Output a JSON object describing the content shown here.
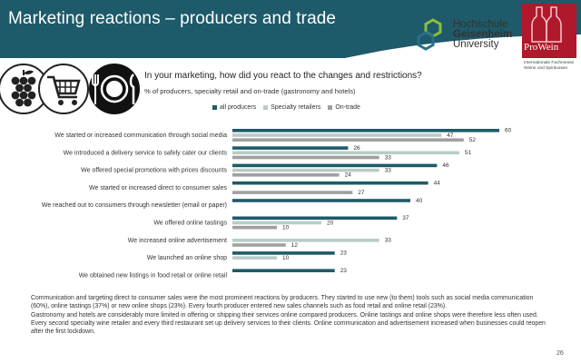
{
  "header": {
    "title": "Marketing reactions – producers and trade",
    "band_color": "#1e5a6a",
    "university_lines": [
      "Hochschule",
      "Geisenheim",
      "University"
    ],
    "partner_logo": "ProWein",
    "partner_sub_lines": [
      "Internationale Fachmesse",
      "Weine und Spirituosen"
    ]
  },
  "icons": [
    "grapes-icon",
    "shopping-cart-icon",
    "plate-cutlery-icon"
  ],
  "question": "In your marketing, how did you react to the changes and restrictions?",
  "subquestion": "% of producers, specialty retail and on-trade (gastronomy and hotels)",
  "legend": {
    "items": [
      {
        "label": "all producers",
        "color": "#1e5a6a"
      },
      {
        "label": "Specialty retailers",
        "color": "#b7ccc9"
      },
      {
        "label": "On-trade",
        "color": "#a0a0a0"
      }
    ]
  },
  "chart_data": {
    "type": "bar",
    "orientation": "horizontal",
    "categories": [
      "We started or increased communication through social media",
      "We introduced a delivery service to safely cater our clients",
      "We offered special promotions with prices discounts",
      "We started or increased direct to consumer sales",
      "We reached out to consumers through newsletter (email or paper)",
      "We offered online tastings",
      "We increased online advertisement",
      "We launched an online shop",
      "We obtained new listings in food retail or online retail"
    ],
    "series": [
      {
        "name": "all producers",
        "color": "#1e5a6a",
        "values": [
          60,
          26,
          46,
          44,
          40,
          37,
          null,
          23,
          23
        ]
      },
      {
        "name": "Specialty retailers",
        "color": "#b7ccc9",
        "values": [
          47,
          51,
          33,
          null,
          null,
          20,
          33,
          10,
          null
        ]
      },
      {
        "name": "On-trade",
        "color": "#a0a0a0",
        "values": [
          52,
          33,
          24,
          27,
          null,
          10,
          12,
          null,
          null
        ]
      }
    ],
    "xlim": [
      0,
      60
    ],
    "legend_position": "top",
    "grid": false
  },
  "footer": {
    "paragraph1": "Communication and targeting direct to consumer sales were the most prominent reactions by producers. They started to use new (to them) tools such as social media communication (60%), online tastings (37%) or new online shops (23%). Every fourth producer entered new sales channels such as food retail and online retail (23%).",
    "paragraph2": "Gastronomy and hotels are considerably more limited in offering or shipping their services online compared producers. Online tastings and online shops were therefore less often used. Every second specialty wine retailer and every third restaurant set up delivery services to their clients. Online communication and advertisement increased when businesses could reopen after the first lockdown."
  },
  "page_number": "26"
}
